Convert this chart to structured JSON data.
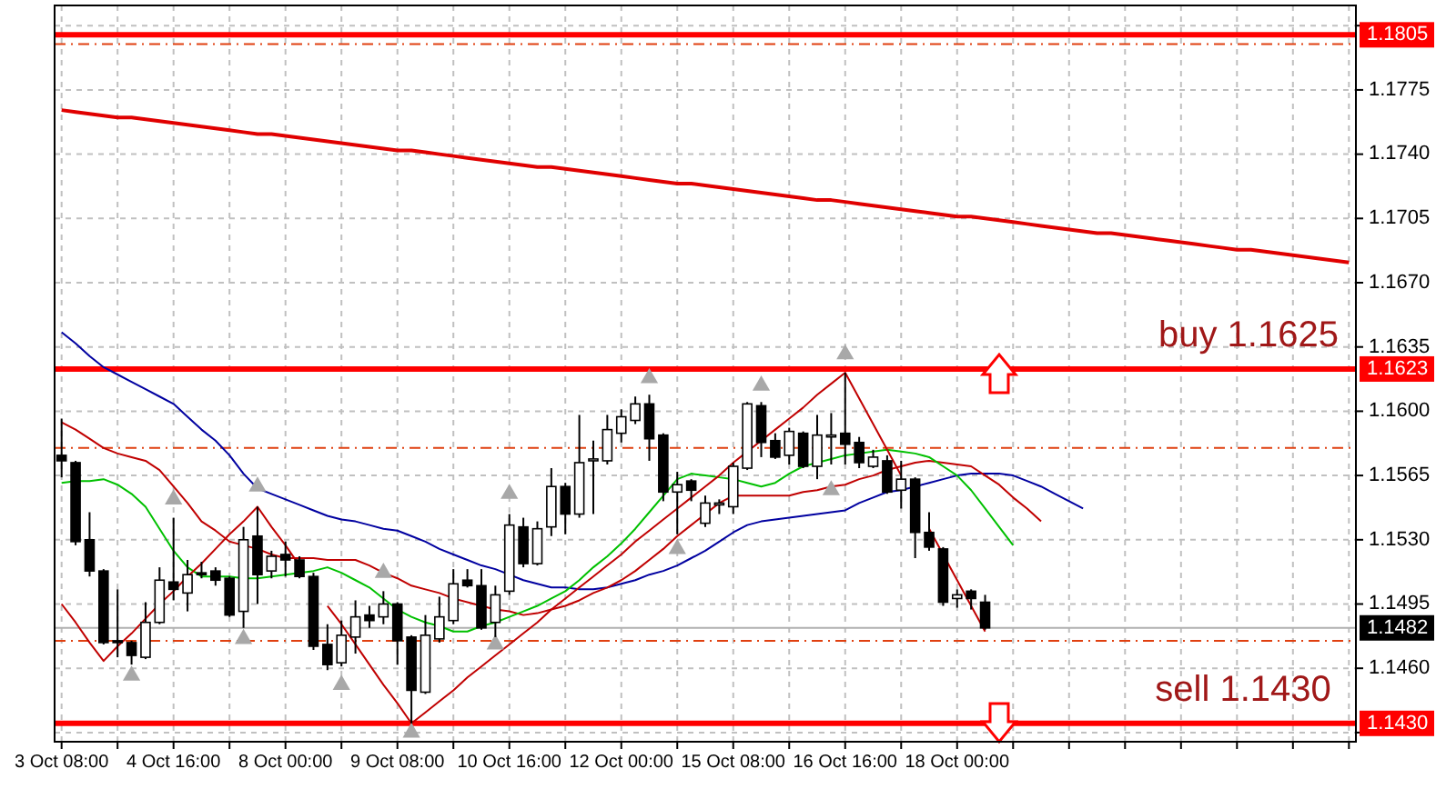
{
  "chart_data": {
    "type": "candlestick",
    "categories": [
      "3 Oct 08:00",
      null,
      null,
      null,
      null,
      null,
      null,
      null,
      "4 Oct 16:00",
      null,
      null,
      null,
      null,
      null,
      null,
      null,
      "8 Oct 00:00",
      null,
      null,
      null,
      null,
      null,
      null,
      null,
      "9 Oct 08:00",
      null,
      null,
      null,
      null,
      null,
      null,
      null,
      "10 Oct 16:00",
      null,
      null,
      null,
      null,
      null,
      null,
      null,
      "12 Oct 00:00",
      null,
      null,
      null,
      null,
      null,
      null,
      null,
      "15 Oct 08:00",
      null,
      null,
      null,
      null,
      null,
      null,
      null,
      "16 Oct 16:00",
      null,
      null,
      null,
      null,
      null,
      null,
      null,
      "18 Oct 00:00",
      null,
      null,
      null,
      null,
      null,
      null,
      null,
      null,
      null,
      null,
      null,
      null,
      null,
      null,
      null,
      null,
      null,
      null,
      null,
      null,
      null,
      null,
      null,
      null,
      null,
      null,
      null,
      null
    ],
    "ohlc": [
      [
        1.1576,
        1.1596,
        1.1564,
        1.1573
      ],
      [
        1.1572,
        1.1573,
        1.1527,
        1.1529
      ],
      [
        1.153,
        1.1545,
        1.151,
        1.1513
      ],
      [
        1.1513,
        1.1514,
        1.1473,
        1.1474
      ],
      [
        1.1475,
        1.1503,
        1.1466,
        1.1474
      ],
      [
        1.1474,
        1.1475,
        1.1462,
        1.1467
      ],
      [
        1.1466,
        1.1496,
        1.1465,
        1.1485
      ],
      [
        1.1485,
        1.1515,
        1.1484,
        1.1508
      ],
      [
        1.1507,
        1.1542,
        1.1497,
        1.1503
      ],
      [
        1.1501,
        1.1519,
        1.1491,
        1.1511
      ],
      [
        1.1512,
        1.1518,
        1.1509,
        1.1511
      ],
      [
        1.1513,
        1.1515,
        1.1505,
        1.1508
      ],
      [
        1.1509,
        1.151,
        1.1488,
        1.1489
      ],
      [
        1.1491,
        1.1537,
        1.1482,
        1.153
      ],
      [
        1.1532,
        1.1548,
        1.1495,
        1.1511
      ],
      [
        1.1513,
        1.1524,
        1.1509,
        1.1521
      ],
      [
        1.1522,
        1.1529,
        1.151,
        1.1519
      ],
      [
        1.1519,
        1.1521,
        1.1509,
        1.151
      ],
      [
        1.151,
        1.1512,
        1.147,
        1.1472
      ],
      [
        1.1473,
        1.1484,
        1.1459,
        1.1462
      ],
      [
        1.1463,
        1.1486,
        1.1461,
        1.1478
      ],
      [
        1.1477,
        1.1497,
        1.1468,
        1.1488
      ],
      [
        1.1489,
        1.1494,
        1.1482,
        1.1486
      ],
      [
        1.1488,
        1.1502,
        1.1484,
        1.1495
      ],
      [
        1.1495,
        1.1496,
        1.1462,
        1.1475
      ],
      [
        1.1477,
        1.1478,
        1.143,
        1.1448
      ],
      [
        1.1447,
        1.1489,
        1.1446,
        1.1478
      ],
      [
        1.1476,
        1.1499,
        1.1474,
        1.1488
      ],
      [
        1.1486,
        1.1514,
        1.1484,
        1.1506
      ],
      [
        1.1508,
        1.1514,
        1.1504,
        1.1505
      ],
      [
        1.1505,
        1.1514,
        1.1481,
        1.1482
      ],
      [
        1.1485,
        1.1505,
        1.1477,
        1.15
      ],
      [
        1.1502,
        1.1544,
        1.15,
        1.1538
      ],
      [
        1.1537,
        1.1542,
        1.1515,
        1.1517
      ],
      [
        1.1517,
        1.154,
        1.1516,
        1.1536
      ],
      [
        1.1537,
        1.1569,
        1.1532,
        1.1559
      ],
      [
        1.1559,
        1.1561,
        1.1533,
        1.1544
      ],
      [
        1.1544,
        1.1598,
        1.1542,
        1.1572
      ],
      [
        1.1573,
        1.1584,
        1.1544,
        1.1574
      ],
      [
        1.1573,
        1.1598,
        1.1571,
        1.159
      ],
      [
        1.1588,
        1.1601,
        1.1583,
        1.1597
      ],
      [
        1.1595,
        1.1608,
        1.1593,
        1.1604
      ],
      [
        1.1604,
        1.1609,
        1.1573,
        1.1585
      ],
      [
        1.1587,
        1.1588,
        1.1551,
        1.1556
      ],
      [
        1.1556,
        1.1567,
        1.1533,
        1.156
      ],
      [
        1.1562,
        1.1563,
        1.1551,
        1.1557
      ],
      [
        1.1539,
        1.1554,
        1.1537,
        1.155
      ],
      [
        1.1549,
        1.1552,
        1.1544,
        1.155
      ],
      [
        1.1548,
        1.1572,
        1.1544,
        1.157
      ],
      [
        1.1569,
        1.1605,
        1.1568,
        1.1604
      ],
      [
        1.1603,
        1.1605,
        1.1575,
        1.1583
      ],
      [
        1.1584,
        1.1588,
        1.1574,
        1.1575
      ],
      [
        1.1576,
        1.1591,
        1.1571,
        1.1589
      ],
      [
        1.1588,
        1.1589,
        1.1569,
        1.157
      ],
      [
        1.157,
        1.1598,
        1.1563,
        1.1587
      ],
      [
        1.1586,
        1.1599,
        1.1571,
        1.1587
      ],
      [
        1.1588,
        1.1621,
        1.1571,
        1.1582
      ],
      [
        1.1583,
        1.1586,
        1.1569,
        1.1572
      ],
      [
        1.157,
        1.1579,
        1.1569,
        1.1575
      ],
      [
        1.1573,
        1.1576,
        1.1555,
        1.1556
      ],
      [
        1.1557,
        1.1573,
        1.1547,
        1.1563
      ],
      [
        1.1563,
        1.1564,
        1.152,
        1.1534
      ],
      [
        1.1534,
        1.1545,
        1.1524,
        1.1526
      ],
      [
        1.1525,
        1.1526,
        1.1494,
        1.1496
      ],
      [
        1.1498,
        1.1503,
        1.1493,
        1.15
      ],
      [
        1.1502,
        1.1503,
        1.1492,
        1.1498
      ],
      [
        1.1496,
        1.15,
        1.1481,
        1.1482
      ],
      null,
      null,
      null,
      null,
      null,
      null,
      null,
      null,
      null,
      null,
      null,
      null,
      null,
      null,
      null,
      null,
      null,
      null,
      null,
      null,
      null,
      null,
      null,
      null,
      null,
      null
    ],
    "ylim": [
      1.142,
      1.1821
    ],
    "yticks": [
      {
        "value": 1.181,
        "label": null
      },
      1.1775,
      {
        "value": 1.174,
        "label": "1.1740"
      },
      1.1705,
      {
        "value": 1.167,
        "label": "1.1670"
      },
      1.1635,
      {
        "value": 1.16,
        "label": "1.1600"
      },
      1.1565,
      {
        "value": 1.153,
        "label": "1.1530"
      },
      1.1495,
      {
        "value": 1.146,
        "label": "1.1460"
      },
      {
        "value": 1.1425,
        "label": null
      }
    ],
    "grid": true,
    "series": [
      {
        "type": "line",
        "color": "#0000a0",
        "values": [
          1.1643,
          1.1637,
          1.163,
          1.1624,
          1.162,
          1.1616,
          1.1612,
          1.1608,
          1.1604,
          1.1597,
          1.159,
          1.1584,
          1.1576,
          1.1566,
          1.1558,
          1.1555,
          1.1552,
          1.1549,
          1.1546,
          1.1543,
          1.1541,
          1.154,
          1.1538,
          1.1536,
          1.1535,
          1.1532,
          1.1529,
          1.1525,
          1.1522,
          1.1519,
          1.1516,
          1.1514,
          1.1511,
          1.1508,
          1.1506,
          1.1504,
          1.1504,
          1.1503,
          1.1503,
          1.1504,
          1.1506,
          1.1508,
          1.1511,
          1.1513,
          1.1516,
          1.152,
          1.1524,
          1.1529,
          1.1534,
          1.1538,
          1.154,
          1.1541,
          1.1542,
          1.1543,
          1.1544,
          1.1545,
          1.1546,
          1.155,
          1.1553,
          1.1556,
          1.1557,
          1.1559,
          1.1561,
          1.1563,
          1.1565,
          1.1566,
          1.1566,
          1.1566,
          1.1565,
          1.1562,
          1.1559,
          1.1555,
          1.1551,
          1.1547,
          null,
          null,
          null,
          null,
          null,
          null,
          null,
          null,
          null,
          null,
          null,
          null,
          null,
          null,
          null,
          null,
          null,
          null,
          null
        ]
      },
      {
        "type": "line",
        "color": "#c00000",
        "values": [
          1.1594,
          1.159,
          1.1585,
          1.158,
          1.1577,
          1.1575,
          1.1573,
          1.1568,
          1.1559,
          1.155,
          1.154,
          1.1535,
          1.1529,
          1.1527,
          1.1525,
          1.1522,
          1.152,
          1.152,
          1.152,
          1.1519,
          1.1519,
          1.1519,
          1.1516,
          1.1512,
          1.1509,
          1.1505,
          1.1503,
          1.1501,
          1.1498,
          1.1496,
          1.1494,
          1.1492,
          1.1491,
          1.1489,
          1.149,
          1.1492,
          1.1494,
          1.1497,
          1.1501,
          1.1504,
          1.1508,
          1.1513,
          1.1519,
          1.1525,
          1.1532,
          1.1538,
          1.1544,
          1.155,
          1.1554,
          1.1554,
          1.1554,
          1.1554,
          1.1554,
          1.1556,
          1.1557,
          1.1559,
          1.156,
          1.1563,
          1.1565,
          1.1568,
          1.157,
          1.1572,
          1.1573,
          1.1572,
          1.1571,
          1.157,
          1.1565,
          1.156,
          1.1553,
          1.1547,
          1.154,
          null,
          null,
          null,
          null,
          null,
          null,
          null,
          null,
          null,
          null,
          null,
          null,
          null,
          null,
          null,
          null,
          null,
          null,
          null,
          null,
          null,
          null
        ]
      },
      {
        "type": "line",
        "color": "#00c000",
        "values": [
          1.1561,
          1.1562,
          1.1562,
          1.1563,
          1.156,
          1.1555,
          1.1548,
          1.1536,
          1.1524,
          1.1515,
          1.151,
          1.151,
          1.151,
          1.1509,
          1.1509,
          1.151,
          1.1511,
          1.1512,
          1.1513,
          1.1515,
          1.1512,
          1.1508,
          1.1504,
          1.1498,
          1.1492,
          1.1488,
          1.1485,
          1.1483,
          1.148,
          1.148,
          1.1483,
          1.1485,
          1.1488,
          1.1491,
          1.1494,
          1.1498,
          1.1502,
          1.1508,
          1.1515,
          1.1521,
          1.1528,
          1.1536,
          1.1545,
          1.1554,
          1.1563,
          1.1566,
          1.1565,
          1.1564,
          1.1563,
          1.1561,
          1.1559,
          1.1561,
          1.1566,
          1.157,
          1.1572,
          1.1574,
          1.1576,
          1.1577,
          1.1578,
          1.1579,
          1.1578,
          1.1577,
          1.1575,
          1.157,
          1.1565,
          1.1557,
          1.1547,
          1.1537,
          1.1527,
          null,
          null,
          null,
          null,
          null,
          null,
          null,
          null,
          null,
          null,
          null,
          null,
          null,
          null,
          null,
          null,
          null,
          null,
          null,
          null,
          null,
          null,
          null,
          null
        ]
      },
      {
        "type": "line",
        "color": "#e00000",
        "values": [
          1.1764,
          1.1763,
          1.1762,
          1.1761,
          1.176,
          1.176,
          1.1759,
          1.1758,
          1.1757,
          1.1756,
          1.1755,
          1.1754,
          1.1753,
          1.1752,
          1.1751,
          1.1751,
          1.175,
          1.1749,
          1.1748,
          1.1747,
          1.1746,
          1.1745,
          1.1744,
          1.1743,
          1.1742,
          1.1742,
          1.1741,
          1.174,
          1.1739,
          1.1738,
          1.1737,
          1.1736,
          1.1735,
          1.1734,
          1.1733,
          1.1733,
          1.1732,
          1.1731,
          1.173,
          1.1729,
          1.1728,
          1.1727,
          1.1726,
          1.1725,
          1.1724,
          1.1724,
          1.1723,
          1.1722,
          1.1721,
          1.172,
          1.1719,
          1.1718,
          1.1717,
          1.1716,
          1.1715,
          1.1715,
          1.1714,
          1.1713,
          1.1712,
          1.1711,
          1.171,
          1.1709,
          1.1708,
          1.1707,
          1.1706,
          1.1706,
          1.1705,
          1.1704,
          1.1703,
          1.1702,
          1.1701,
          1.17,
          1.1699,
          1.1698,
          1.1697,
          1.1697,
          1.1696,
          1.1695,
          1.1694,
          1.1693,
          1.1692,
          1.1691,
          1.169,
          1.1689,
          1.1688,
          1.1688,
          1.1687,
          1.1686,
          1.1685,
          1.1684,
          1.1683,
          1.1682,
          1.1681
        ]
      },
      {
        "type": "line",
        "color": "#c00000",
        "values": [
          1.1495,
          1.1485,
          1.1474,
          1.1464,
          1.1472,
          1.1479,
          1.1487,
          1.1495,
          1.1502,
          1.151,
          1.1517,
          1.1525,
          1.1533,
          1.154,
          1.1548,
          1.1537,
          1.1527,
          1.1516,
          null,
          1.1494,
          1.1484,
          1.1473,
          1.1462,
          1.1451,
          1.1441,
          1.143,
          1.1436,
          1.1442,
          1.1448,
          1.1455,
          1.1461,
          1.1467,
          1.1473,
          1.1479,
          1.1485,
          1.1492,
          1.1498,
          1.1504,
          1.151,
          1.1516,
          1.1522,
          1.1529,
          1.1535,
          1.1541,
          1.1547,
          1.1553,
          1.1559,
          1.1565,
          1.1572,
          1.1578,
          1.1584,
          1.159,
          1.1596,
          1.1602,
          1.1609,
          1.1615,
          1.1621,
          1.1607,
          1.1593,
          1.1579,
          1.1565,
          null,
          1.1536,
          1.1522,
          1.1508,
          1.1494,
          1.148,
          null,
          null,
          null,
          null,
          null,
          null,
          null,
          null,
          null,
          null,
          null,
          null,
          null,
          null,
          null,
          null,
          null,
          null,
          null,
          null,
          null,
          null,
          null,
          null,
          null,
          null
        ]
      },
      {
        "type": "scatter",
        "marker": "triangle",
        "color": "#a8a8a8",
        "values": [
          null,
          null,
          null,
          null,
          null,
          null,
          null,
          null,
          1.1552,
          null,
          null,
          null,
          null,
          null,
          1.1559,
          null,
          null,
          null,
          null,
          null,
          null,
          null,
          null,
          1.1512,
          null,
          null,
          null,
          null,
          null,
          null,
          null,
          null,
          1.1555,
          null,
          null,
          null,
          null,
          null,
          null,
          null,
          null,
          null,
          1.1618,
          null,
          null,
          null,
          null,
          null,
          null,
          null,
          1.1614,
          null,
          null,
          null,
          null,
          null,
          1.1631,
          null,
          null,
          null,
          null,
          null,
          null,
          null,
          null,
          null,
          null,
          null,
          null,
          null,
          null,
          null,
          null,
          null,
          null,
          null,
          null,
          null,
          null,
          null,
          null,
          null,
          null,
          null,
          null,
          null,
          null,
          null,
          null,
          null,
          null,
          null,
          null
        ]
      },
      {
        "type": "scatter",
        "marker": "triangle",
        "color": "#a8a8a8",
        "values": [
          null,
          null,
          null,
          null,
          null,
          1.1456,
          null,
          null,
          null,
          null,
          null,
          null,
          null,
          1.1476,
          null,
          null,
          null,
          null,
          null,
          null,
          1.1451,
          null,
          null,
          null,
          null,
          1.1425,
          null,
          null,
          null,
          null,
          null,
          1.1473,
          null,
          null,
          null,
          null,
          null,
          null,
          null,
          null,
          null,
          null,
          null,
          null,
          1.1525,
          null,
          null,
          null,
          null,
          null,
          null,
          null,
          null,
          null,
          null,
          1.1557,
          null,
          null,
          null,
          null,
          null,
          null,
          null,
          null,
          null,
          null,
          null,
          null,
          null,
          null,
          null,
          null,
          null,
          null,
          null,
          null,
          null,
          null,
          null,
          null,
          null,
          null,
          null,
          null,
          null,
          null,
          null,
          null,
          null,
          null,
          null,
          null,
          null
        ]
      }
    ],
    "ref_lines": [
      {
        "axis": "y",
        "value": 1.18,
        "label": null,
        "color": "#e04010",
        "line_style": "dashed"
      },
      {
        "axis": "y",
        "value": 1.158,
        "label": null,
        "color": "#e04010",
        "line_style": "dashed"
      },
      {
        "axis": "y",
        "value": 1.1475,
        "label": null,
        "color": "#e04010",
        "line_style": "dashed"
      },
      {
        "axis": "y",
        "value": 1.1482,
        "label": "1.1482",
        "color": "#b0b0b0",
        "line_style": "solid"
      },
      {
        "axis": "y",
        "value": 1.1805,
        "label": "1.1805",
        "color": "#ff0000",
        "line_style": "solid"
      },
      {
        "axis": "y",
        "value": 1.1623,
        "label": "1.1623",
        "color": "#ff0000",
        "line_style": "solid"
      },
      {
        "axis": "y",
        "value": 1.143,
        "label": "1.1430",
        "color": "#ff0000",
        "line_style": "solid"
      }
    ],
    "annotations": [
      "buy 1.1625",
      "sell 1.1430"
    ]
  }
}
